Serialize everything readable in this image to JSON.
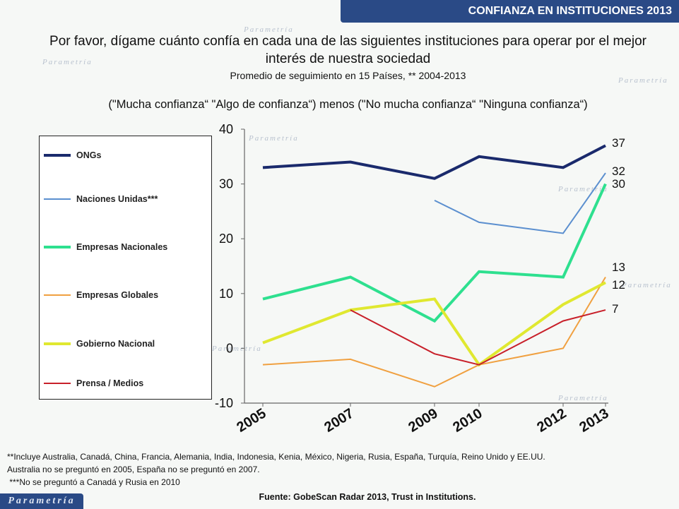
{
  "header": {
    "title": "CONFIANZA EN INSTITUCIONES 2013"
  },
  "question": "Por favor, dígame cuánto confía en cada una de las siguientes instituciones para operar por el mejor interés de nuestra sociedad",
  "subtitle": "Promedio de seguimiento en 15 Países, ** 2004-2013",
  "formula": "(\"Mucha confianza“ \"Algo de confianza“) menos (\"No mucha confianza“ \"Ninguna confianza“)",
  "chart_data": {
    "type": "line",
    "x": [
      "2005",
      "2007",
      "2009",
      "2010",
      "2012",
      "2013"
    ],
    "ylim": [
      -10,
      40
    ],
    "yticks": [
      "40",
      "30",
      "20",
      "10",
      "0",
      "-10"
    ],
    "grid": false,
    "legend_position": "left",
    "series": [
      {
        "name": "ONGs",
        "color": "#1a2a6c",
        "width": 4,
        "values": [
          33,
          34,
          31,
          35,
          33,
          37
        ],
        "end_label": "37"
      },
      {
        "name": "Naciones Unidas***",
        "color": "#5b8fcf",
        "width": 2,
        "values": [
          null,
          null,
          27,
          23,
          21,
          32
        ],
        "end_label": "32"
      },
      {
        "name": "Empresas Nacionales",
        "color": "#2ee08f",
        "width": 4,
        "values": [
          9,
          13,
          5,
          14,
          13,
          30
        ],
        "end_label": "30"
      },
      {
        "name": "Empresas Globales",
        "color": "#f0a040",
        "width": 2,
        "values": [
          -3,
          -2,
          -7,
          -3,
          0,
          13
        ],
        "end_label": "13"
      },
      {
        "name": "Gobierno Nacional",
        "color": "#e0e830",
        "width": 4,
        "values": [
          1,
          7,
          9,
          -3,
          8,
          12
        ],
        "end_label": "12"
      },
      {
        "name": "Prensa / Medios",
        "color": "#c8202a",
        "width": 2,
        "values": [
          null,
          7,
          -1,
          -3,
          5,
          7
        ],
        "end_label": "7"
      }
    ]
  },
  "footnotes": {
    "line1": "**Incluye Australia, Canadá, China, Francia, Alemania, India, Indonesia, Kenia, México, Nigeria, Rusia, España, Turquía, Reino Unido y EE.UU.",
    "line2": "Australia no se preguntó en 2005, España no se preguntó en 2007.",
    "line3": " ***No se preguntó a Canadá y Rusia en 2010"
  },
  "source": "Fuente: GobeScan Radar 2013, Trust in Institutions.",
  "brand": {
    "logo_text": "Parametría",
    "watermark": "Parametría"
  }
}
